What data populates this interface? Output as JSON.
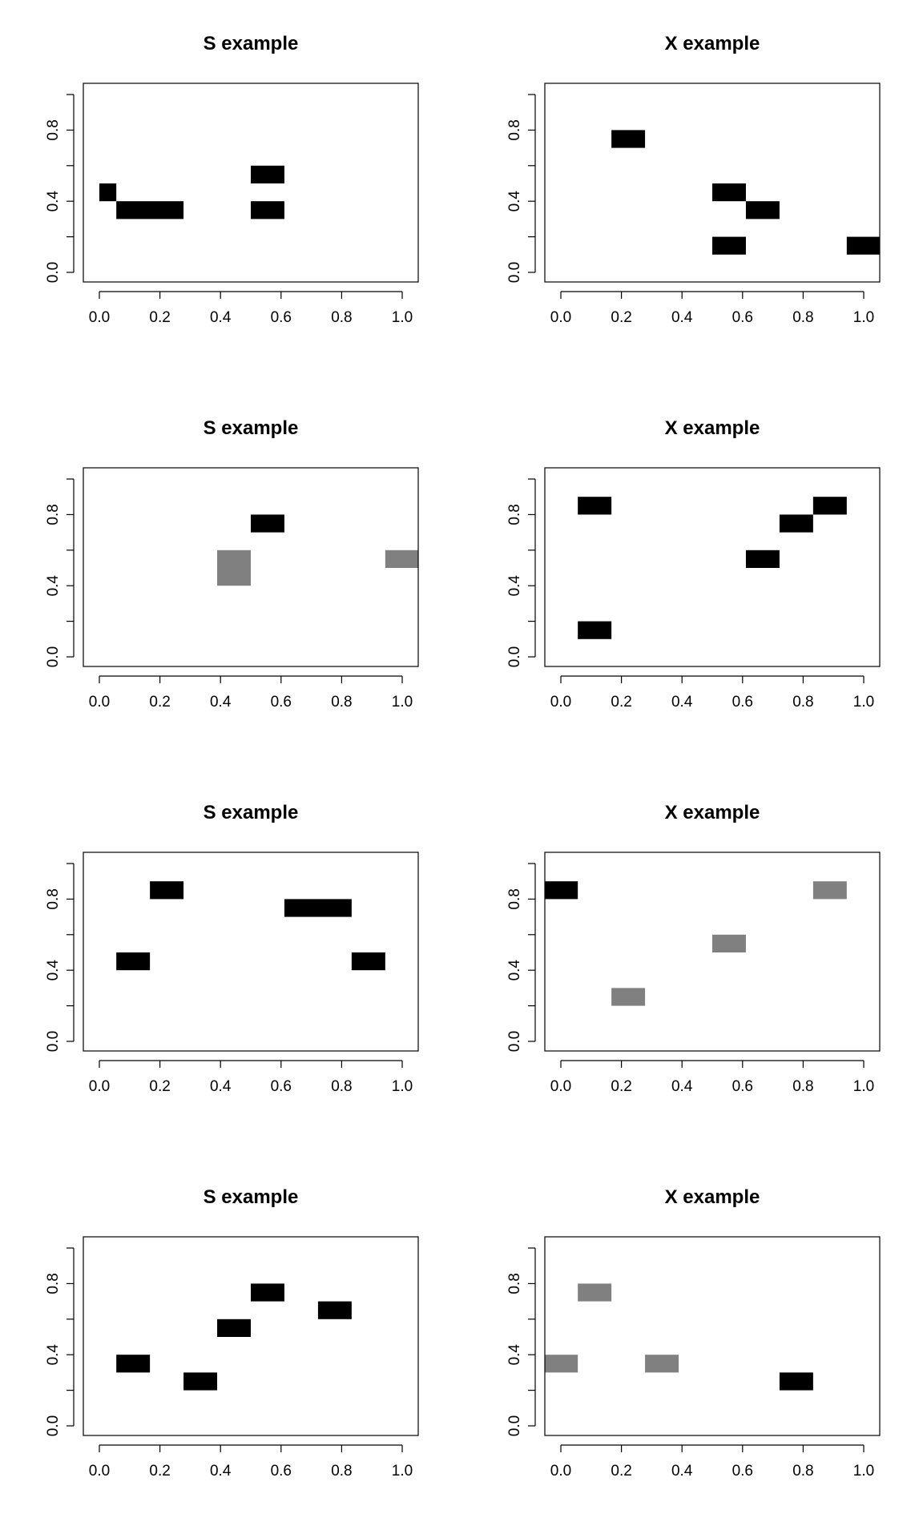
{
  "colors": {
    "black": "#000000",
    "gray": "#808080",
    "frame": "#000000"
  },
  "chart_data": [
    {
      "type": "heatmap",
      "title": "S example",
      "xlim": [
        0,
        1
      ],
      "ylim": [
        0,
        1
      ],
      "x_ticks": [
        "0.0",
        "0.2",
        "0.4",
        "0.6",
        "0.8",
        "1.0"
      ],
      "y_ticks": [
        "0.0",
        "0.4",
        "0.8"
      ],
      "cells": [
        {
          "x": [
            0.0,
            0.056
          ],
          "y": [
            0.4,
            0.5
          ],
          "color": "black"
        },
        {
          "x": [
            0.056,
            0.278
          ],
          "y": [
            0.3,
            0.4
          ],
          "color": "black"
        },
        {
          "x": [
            0.5,
            0.611
          ],
          "y": [
            0.3,
            0.4
          ],
          "color": "black"
        },
        {
          "x": [
            0.5,
            0.611
          ],
          "y": [
            0.5,
            0.6
          ],
          "color": "black"
        }
      ]
    },
    {
      "type": "heatmap",
      "title": "X example",
      "xlim": [
        0,
        1
      ],
      "ylim": [
        0,
        1
      ],
      "x_ticks": [
        "0.0",
        "0.2",
        "0.4",
        "0.6",
        "0.8",
        "1.0"
      ],
      "y_ticks": [
        "0.0",
        "0.4",
        "0.8"
      ],
      "cells": [
        {
          "x": [
            0.167,
            0.278
          ],
          "y": [
            0.7,
            0.8
          ],
          "color": "black"
        },
        {
          "x": [
            0.5,
            0.611
          ],
          "y": [
            0.4,
            0.5
          ],
          "color": "black"
        },
        {
          "x": [
            0.611,
            0.722
          ],
          "y": [
            0.3,
            0.4
          ],
          "color": "black"
        },
        {
          "x": [
            0.5,
            0.611
          ],
          "y": [
            0.1,
            0.2
          ],
          "color": "black"
        },
        {
          "x": [
            0.944,
            1.056
          ],
          "y": [
            0.1,
            0.2
          ],
          "color": "black"
        }
      ]
    },
    {
      "type": "heatmap",
      "title": "S example",
      "xlim": [
        0,
        1
      ],
      "ylim": [
        0,
        1
      ],
      "x_ticks": [
        "0.0",
        "0.2",
        "0.4",
        "0.6",
        "0.8",
        "1.0"
      ],
      "y_ticks": [
        "0.0",
        "0.4",
        "0.8"
      ],
      "cells": [
        {
          "x": [
            0.5,
            0.611
          ],
          "y": [
            0.7,
            0.8
          ],
          "color": "black"
        },
        {
          "x": [
            0.389,
            0.5
          ],
          "y": [
            0.4,
            0.6
          ],
          "color": "gray"
        },
        {
          "x": [
            0.944,
            1.056
          ],
          "y": [
            0.5,
            0.6
          ],
          "color": "gray"
        }
      ]
    },
    {
      "type": "heatmap",
      "title": "X example",
      "xlim": [
        0,
        1
      ],
      "ylim": [
        0,
        1
      ],
      "x_ticks": [
        "0.0",
        "0.2",
        "0.4",
        "0.6",
        "0.8",
        "1.0"
      ],
      "y_ticks": [
        "0.0",
        "0.4",
        "0.8"
      ],
      "cells": [
        {
          "x": [
            0.056,
            0.167
          ],
          "y": [
            0.8,
            0.9
          ],
          "color": "black"
        },
        {
          "x": [
            0.722,
            0.833
          ],
          "y": [
            0.7,
            0.8
          ],
          "color": "black"
        },
        {
          "x": [
            0.833,
            0.944
          ],
          "y": [
            0.8,
            0.9
          ],
          "color": "black"
        },
        {
          "x": [
            0.611,
            0.722
          ],
          "y": [
            0.5,
            0.6
          ],
          "color": "black"
        },
        {
          "x": [
            0.056,
            0.167
          ],
          "y": [
            0.1,
            0.2
          ],
          "color": "black"
        }
      ]
    },
    {
      "type": "heatmap",
      "title": "S example",
      "xlim": [
        0,
        1
      ],
      "ylim": [
        0,
        1
      ],
      "x_ticks": [
        "0.0",
        "0.2",
        "0.4",
        "0.6",
        "0.8",
        "1.0"
      ],
      "y_ticks": [
        "0.0",
        "0.4",
        "0.8"
      ],
      "cells": [
        {
          "x": [
            0.167,
            0.278
          ],
          "y": [
            0.8,
            0.9
          ],
          "color": "black"
        },
        {
          "x": [
            0.611,
            0.833
          ],
          "y": [
            0.7,
            0.8
          ],
          "color": "black"
        },
        {
          "x": [
            0.056,
            0.167
          ],
          "y": [
            0.4,
            0.5
          ],
          "color": "black"
        },
        {
          "x": [
            0.833,
            0.944
          ],
          "y": [
            0.4,
            0.5
          ],
          "color": "black"
        }
      ]
    },
    {
      "type": "heatmap",
      "title": "X example",
      "xlim": [
        0,
        1
      ],
      "ylim": [
        0,
        1
      ],
      "x_ticks": [
        "0.0",
        "0.2",
        "0.4",
        "0.6",
        "0.8",
        "1.0"
      ],
      "y_ticks": [
        "0.0",
        "0.4",
        "0.8"
      ],
      "cells": [
        {
          "x": [
            -0.056,
            0.056
          ],
          "y": [
            0.8,
            0.9
          ],
          "color": "black"
        },
        {
          "x": [
            0.833,
            0.944
          ],
          "y": [
            0.8,
            0.9
          ],
          "color": "gray"
        },
        {
          "x": [
            0.5,
            0.611
          ],
          "y": [
            0.5,
            0.6
          ],
          "color": "gray"
        },
        {
          "x": [
            0.167,
            0.278
          ],
          "y": [
            0.2,
            0.3
          ],
          "color": "gray"
        }
      ]
    },
    {
      "type": "heatmap",
      "title": "S example",
      "xlim": [
        0,
        1
      ],
      "ylim": [
        0,
        1
      ],
      "x_ticks": [
        "0.0",
        "0.2",
        "0.4",
        "0.6",
        "0.8",
        "1.0"
      ],
      "y_ticks": [
        "0.0",
        "0.4",
        "0.8"
      ],
      "cells": [
        {
          "x": [
            0.5,
            0.611
          ],
          "y": [
            0.7,
            0.8
          ],
          "color": "black"
        },
        {
          "x": [
            0.722,
            0.833
          ],
          "y": [
            0.6,
            0.7
          ],
          "color": "black"
        },
        {
          "x": [
            0.389,
            0.5
          ],
          "y": [
            0.5,
            0.6
          ],
          "color": "black"
        },
        {
          "x": [
            0.056,
            0.167
          ],
          "y": [
            0.3,
            0.4
          ],
          "color": "black"
        },
        {
          "x": [
            0.278,
            0.389
          ],
          "y": [
            0.2,
            0.3
          ],
          "color": "black"
        }
      ]
    },
    {
      "type": "heatmap",
      "title": "X example",
      "xlim": [
        0,
        1
      ],
      "ylim": [
        0,
        1
      ],
      "x_ticks": [
        "0.0",
        "0.2",
        "0.4",
        "0.6",
        "0.8",
        "1.0"
      ],
      "y_ticks": [
        "0.0",
        "0.4",
        "0.8"
      ],
      "cells": [
        {
          "x": [
            0.056,
            0.167
          ],
          "y": [
            0.7,
            0.8
          ],
          "color": "gray"
        },
        {
          "x": [
            -0.056,
            0.056
          ],
          "y": [
            0.3,
            0.4
          ],
          "color": "gray"
        },
        {
          "x": [
            0.278,
            0.389
          ],
          "y": [
            0.3,
            0.4
          ],
          "color": "gray"
        },
        {
          "x": [
            0.722,
            0.833
          ],
          "y": [
            0.2,
            0.3
          ],
          "color": "black"
        }
      ]
    }
  ]
}
